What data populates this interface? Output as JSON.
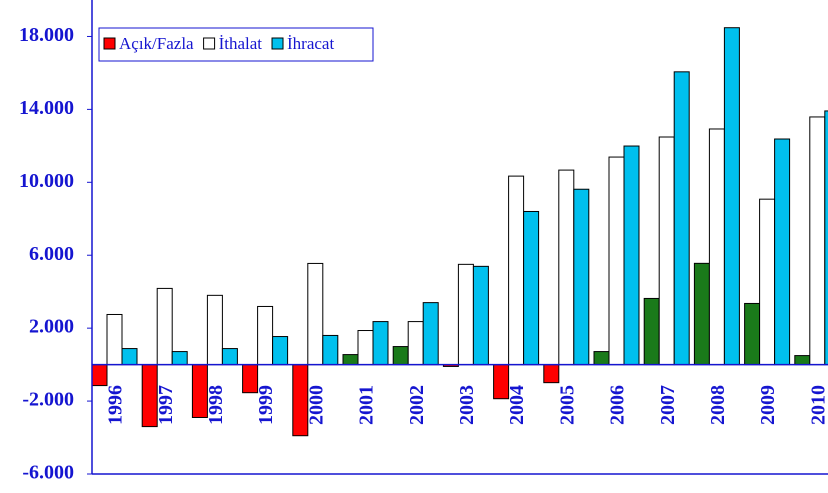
{
  "chart_data": {
    "type": "bar",
    "categories": [
      "1996",
      "1997",
      "1998",
      "1999",
      "2000",
      "2001",
      "2002",
      "2003",
      "2004",
      "2005",
      "2006",
      "2007",
      "2008",
      "2009",
      "2010"
    ],
    "series": [
      {
        "name": "Açık/Fazla",
        "color": "#ff0000",
        "positive_color": "#1a7a1a",
        "values": [
          -1150,
          -3400,
          -2900,
          -1540,
          -3900,
          550,
          990,
          -100,
          -1870,
          -990,
          715,
          3630,
          5555,
          3355,
          495
        ]
      },
      {
        "name": "İthalat",
        "color": "#ffffff",
        "values": [
          2750,
          4180,
          3800,
          3190,
          5550,
          1870,
          2360,
          5500,
          10340,
          10670,
          11385,
          12485,
          12925,
          9075,
          13585
        ]
      },
      {
        "name": "İhracat",
        "color": "#00c0ee",
        "values": [
          880,
          715,
          880,
          1540,
          1600,
          2360,
          3400,
          5390,
          8400,
          9620,
          11990,
          16060,
          18480,
          12375,
          13915
        ]
      }
    ],
    "ylim": [
      -6000,
      20000
    ],
    "yticks": [
      {
        "value": -6000,
        "label": "-6.000"
      },
      {
        "value": -2000,
        "label": "-2.000"
      },
      {
        "value": 2000,
        "label": "2.000"
      },
      {
        "value": 6000,
        "label": "6.000"
      },
      {
        "value": 10000,
        "label": "10.000"
      },
      {
        "value": 14000,
        "label": "14.000"
      },
      {
        "value": 18000,
        "label": "18.000"
      }
    ],
    "legend": "upper left"
  }
}
